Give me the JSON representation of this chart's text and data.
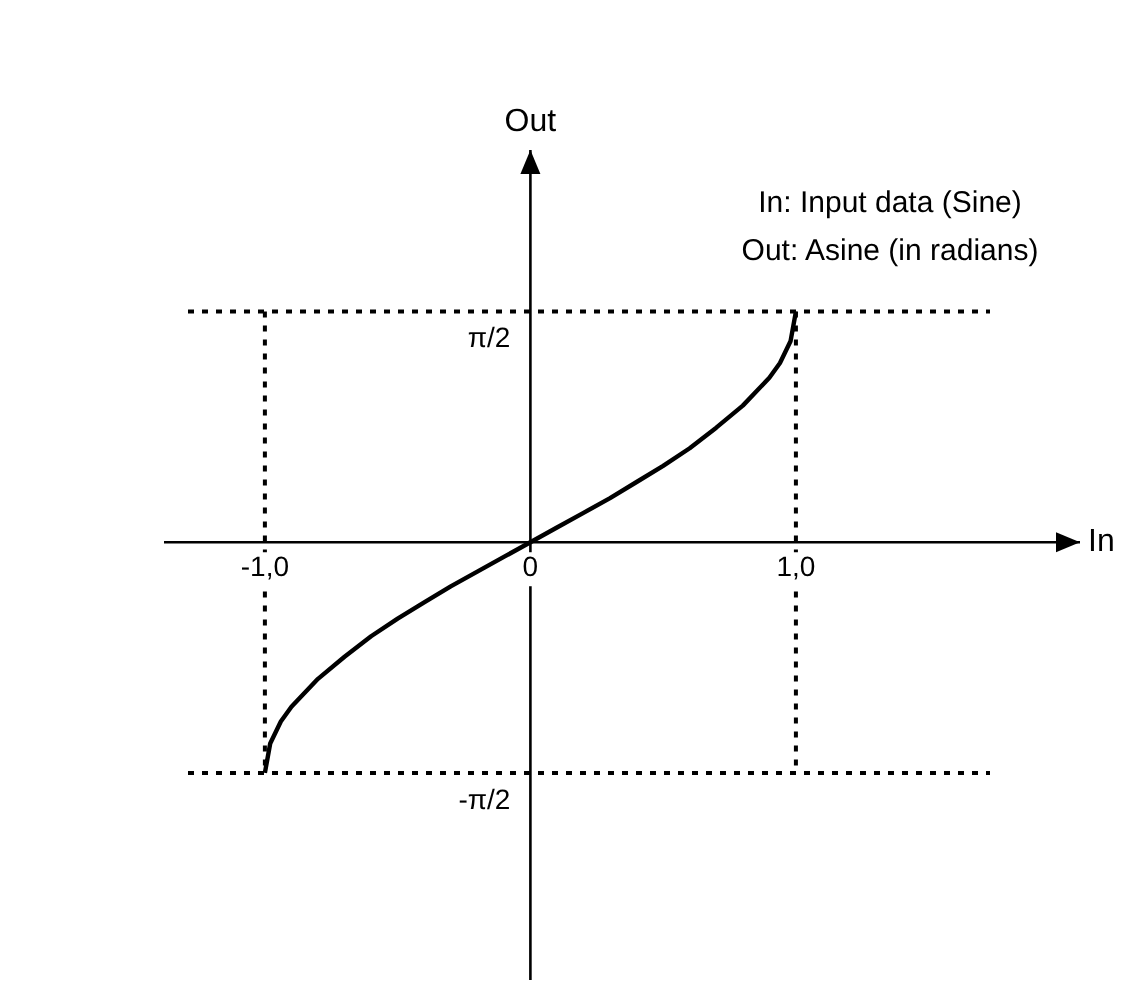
{
  "chart_data": {
    "type": "line",
    "xlabel": "In",
    "ylabel": "Out",
    "annotations": [
      "In: Input data (Sine)",
      "Out: Asine (in radians)"
    ],
    "x": [
      -1,
      -0.98,
      -0.94,
      -0.9,
      -0.8,
      -0.7,
      -0.6,
      -0.5,
      -0.4,
      -0.3,
      -0.2,
      -0.1,
      0,
      0.1,
      0.2,
      0.3,
      0.4,
      0.5,
      0.6,
      0.7,
      0.8,
      0.9,
      0.94,
      0.98,
      1
    ],
    "series": [
      {
        "color": "#000000",
        "values": [
          -1.57,
          -1.37,
          -1.22,
          -1.12,
          -0.93,
          -0.78,
          -0.64,
          -0.52,
          -0.41,
          -0.3,
          -0.2,
          -0.1,
          0,
          0.1,
          0.2,
          0.3,
          0.41,
          0.52,
          0.64,
          0.78,
          0.93,
          1.12,
          1.22,
          1.37,
          1.57
        ]
      }
    ],
    "xlim": [
      -1.38,
      2.07
    ],
    "ylim": [
      -2.98,
      2.67
    ],
    "xticks": [
      {
        "value": -1,
        "label": "-1,0"
      },
      0,
      {
        "value": 1,
        "label": "1,0"
      }
    ],
    "yticks": [
      {
        "value": -1.571,
        "label": "-π/2"
      },
      {
        "value": 1.571,
        "label": "π/2"
      }
    ],
    "ref_lines": [
      {
        "axis": "x",
        "value": -1,
        "line_style": "dotted"
      },
      {
        "axis": "x",
        "value": 1,
        "line_style": "dotted"
      },
      {
        "axis": "y",
        "value": 1.571,
        "line_style": "dotted"
      },
      {
        "axis": "y",
        "value": -1.571,
        "line_style": "dotted"
      }
    ],
    "legend": false,
    "marker": "none",
    "line_style": "solid"
  }
}
